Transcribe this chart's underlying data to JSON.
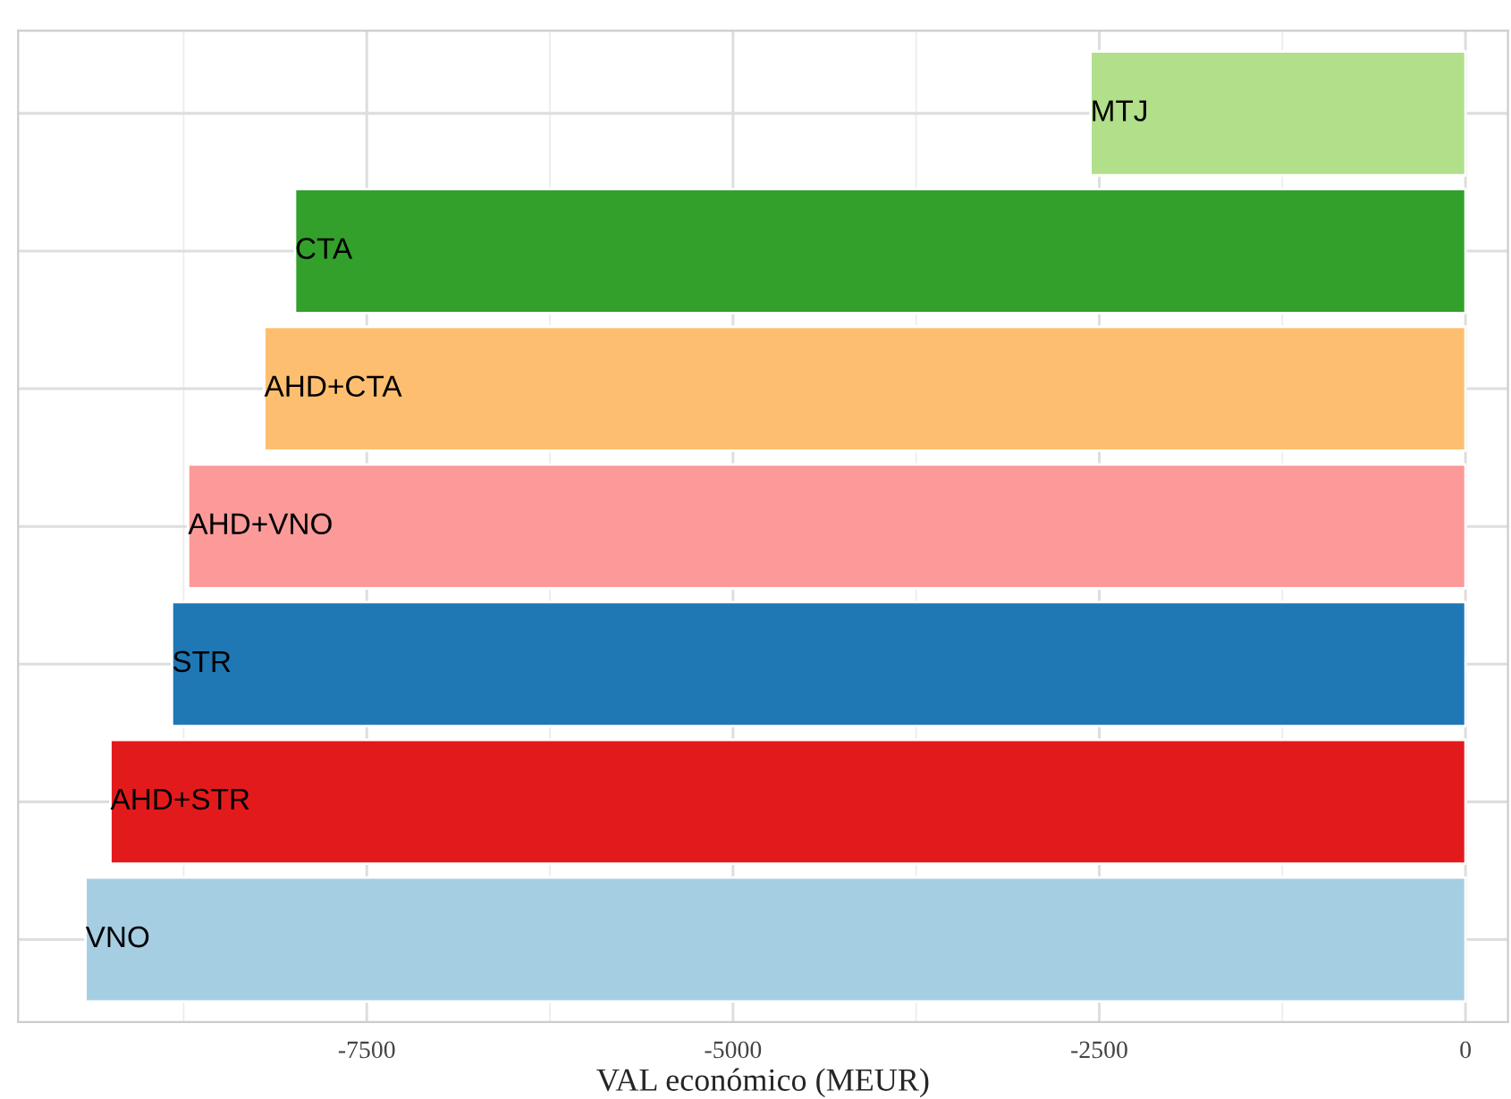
{
  "chart_data": {
    "type": "bar",
    "orientation": "horizontal",
    "xlabel": "VAL económico (MEUR)",
    "categories": [
      "MTJ",
      "CTA",
      "AHD+CTA",
      "AHD+VNO",
      "STR",
      "AHD+STR",
      "VNO"
    ],
    "values": [
      -2560,
      -7990,
      -8200,
      -8720,
      -8830,
      -9250,
      -9420
    ],
    "colors": [
      "#b2df8a",
      "#33a02c",
      "#fdbf6f",
      "#fb9a99",
      "#1f78b4",
      "#e31a1c",
      "#a6cee3"
    ],
    "xlim": [
      -9880,
      290
    ],
    "xticks": [
      -7500,
      -5000,
      -2500,
      0
    ],
    "grid": true,
    "tick_labels": "x",
    "legend": false
  }
}
